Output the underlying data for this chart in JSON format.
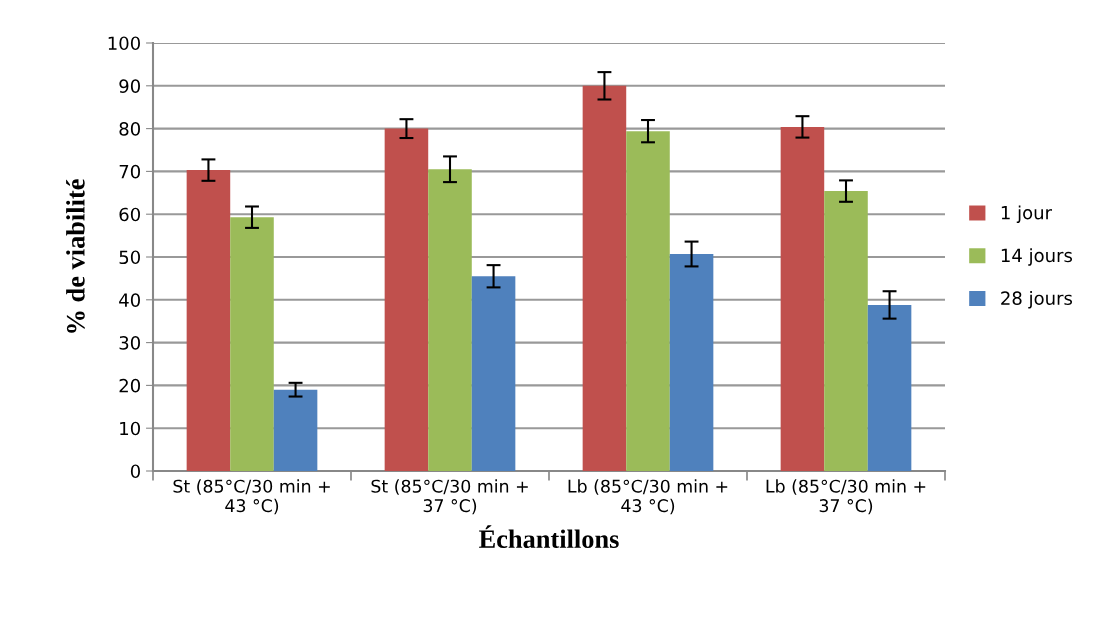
{
  "chart_data": {
    "type": "bar",
    "xlabel": "Échantillons",
    "ylabel": "% de viabilité",
    "categories": [
      "St (85°C/30 min +\n43 °C)",
      "St (85°C/30 min +\n37 °C)",
      "Lb (85°C/30 min +\n43 °C)",
      "Lb (85°C/30 min +\n37 °C)"
    ],
    "series": [
      {
        "name": "1 jour",
        "color": "#c0504d",
        "values": [
          70.3,
          80.0,
          90.0,
          80.4
        ],
        "errors": [
          2.5,
          2.2,
          3.2,
          2.5
        ]
      },
      {
        "name": "14 jours",
        "color": "#9bbb59",
        "values": [
          59.3,
          70.5,
          79.4,
          65.4
        ],
        "errors": [
          2.5,
          3.0,
          2.6,
          2.5
        ]
      },
      {
        "name": "28 jours",
        "color": "#4f81bd",
        "values": [
          19.0,
          45.5,
          50.7,
          38.8
        ],
        "errors": [
          1.6,
          2.6,
          2.9,
          3.2
        ]
      }
    ],
    "ylim": [
      0,
      100
    ],
    "yticks": [
      0,
      10,
      20,
      30,
      40,
      50,
      60,
      70,
      80,
      90,
      100
    ],
    "grid": "y",
    "legend": "right"
  }
}
